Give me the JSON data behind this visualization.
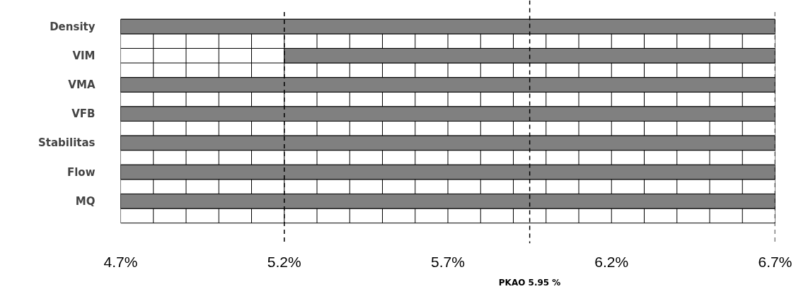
{
  "chart_data": {
    "type": "bar",
    "orientation": "horizontal",
    "categories": [
      "Density",
      "VIM",
      "VMA",
      "VFB",
      "Stabilitas",
      "Flow",
      "MQ"
    ],
    "base": [
      4.7,
      5.2,
      4.7,
      4.7,
      4.7,
      4.7,
      4.7
    ],
    "values": [
      2.0,
      1.5,
      2.0,
      2.0,
      2.0,
      2.0,
      2.0
    ],
    "color": "#808080",
    "xlim": [
      4.7,
      6.7
    ],
    "xticks": [
      {
        "value": 4.7,
        "label": "4.7%"
      },
      {
        "value": 4.8,
        "label": null
      },
      {
        "value": 4.9,
        "label": null
      },
      {
        "value": 5.0,
        "label": null
      },
      {
        "value": 5.1,
        "label": null
      },
      {
        "value": 5.2,
        "label": "5.2%"
      },
      {
        "value": 5.3,
        "label": null
      },
      {
        "value": 5.4,
        "label": null
      },
      {
        "value": 5.5,
        "label": null
      },
      {
        "value": 5.6,
        "label": null
      },
      {
        "value": 5.7,
        "label": "5.7%"
      },
      {
        "value": 5.8,
        "label": null
      },
      {
        "value": 5.9,
        "label": null
      },
      {
        "value": 6.0,
        "label": null
      },
      {
        "value": 6.1,
        "label": null
      },
      {
        "value": 6.2,
        "label": "6.2%"
      },
      {
        "value": 6.3,
        "label": null
      },
      {
        "value": 6.4,
        "label": null
      },
      {
        "value": 6.5,
        "label": null
      },
      {
        "value": 6.6,
        "label": null
      },
      {
        "value": 6.7,
        "label": "6.7%"
      }
    ],
    "grid": true,
    "ref_lines": [
      {
        "axis": "x",
        "value": 5.2,
        "label": null,
        "line_style": "dashed",
        "color": "#000000"
      },
      {
        "axis": "x",
        "value": 5.95,
        "label": "PKAO 5.95 %",
        "line_style": "dashed",
        "color": "#000000"
      },
      {
        "axis": "x",
        "value": 6.7,
        "label": null,
        "line_style": "dashed",
        "color": "#000000"
      }
    ]
  }
}
